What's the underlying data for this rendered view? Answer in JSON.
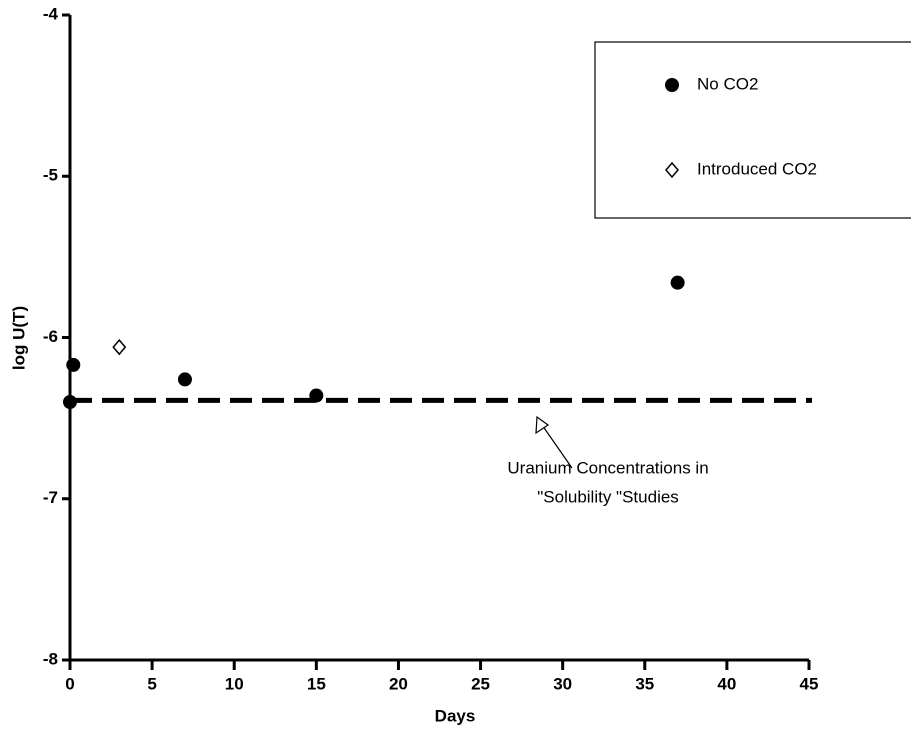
{
  "chart_data": {
    "type": "scatter",
    "x_label": "Days",
    "y_label": "log U(T)",
    "xlim": [
      0,
      45
    ],
    "xticks": [
      0,
      5,
      10,
      15,
      20,
      25,
      30,
      35,
      40,
      45
    ],
    "ylim": [
      -8,
      -4
    ],
    "yticks": [
      -8,
      -7,
      -6,
      -5,
      -4
    ],
    "series": [
      {
        "name": "No CO2",
        "color": "#000000",
        "marker": "circle",
        "x": [
          0,
          0.2,
          7,
          15,
          37
        ],
        "values": [
          -6.4,
          -6.17,
          -6.26,
          -6.36,
          -5.66
        ]
      },
      {
        "name": "Introduced CO2",
        "color": "#000000",
        "marker": "diamond",
        "x": [
          3
        ],
        "values": [
          -6.06
        ]
      }
    ],
    "reference_line": {
      "value": -6.39,
      "style": "dashed",
      "color": "#000000"
    },
    "annotation": {
      "lines": [
        "Uranium Concentrations in",
        "\"Solubility \"Studies"
      ],
      "x": 28.5,
      "y": -6.5
    },
    "legend": "top-right"
  }
}
